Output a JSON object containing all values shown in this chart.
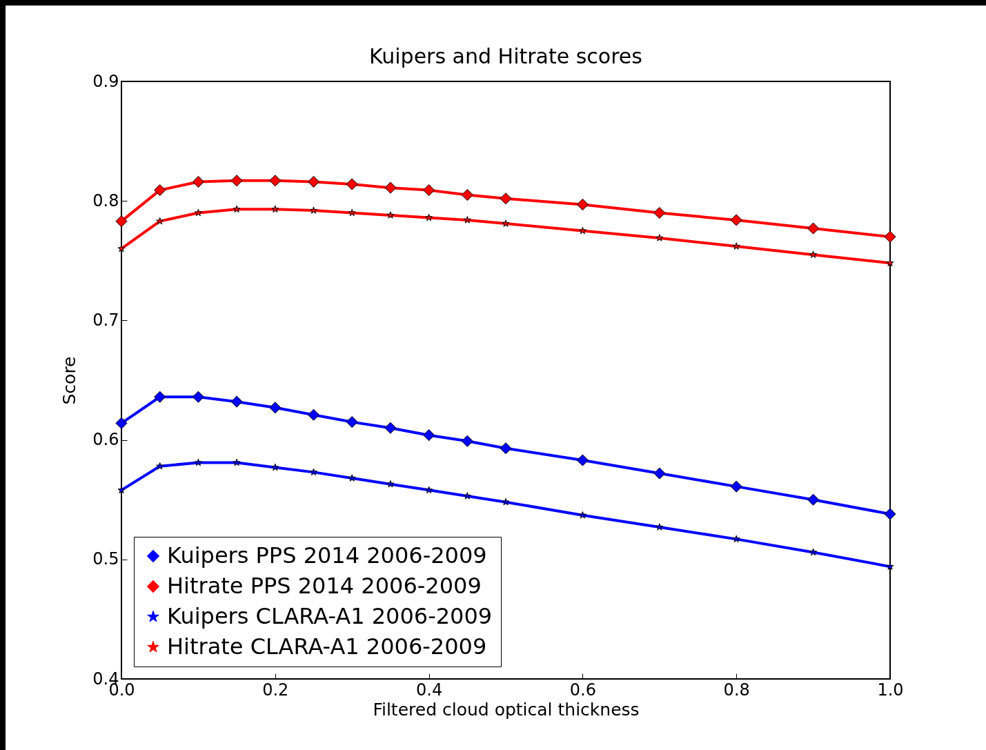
{
  "chart_data": {
    "type": "line",
    "title": "Kuipers and Hitrate scores",
    "xlabel": "Filtered cloud optical thickness",
    "ylabel": "Score",
    "x": [
      0,
      0.05,
      0.1,
      0.15,
      0.2,
      0.25,
      0.3,
      0.35,
      0.4,
      0.45,
      0.5,
      0.6,
      0.7,
      0.8,
      0.9,
      1.0
    ],
    "series": [
      {
        "name": "Kuipers PPS 2014 2006-2009",
        "color": "#0000ff",
        "marker": "diamond",
        "values": [
          0.614,
          0.636,
          0.636,
          0.632,
          0.627,
          0.621,
          0.615,
          0.61,
          0.604,
          0.599,
          0.593,
          0.583,
          0.572,
          0.561,
          0.55,
          0.538
        ]
      },
      {
        "name": "Hitrate PPS 2014 2006-2009",
        "color": "#ff0000",
        "marker": "diamond",
        "values": [
          0.783,
          0.809,
          0.816,
          0.817,
          0.817,
          0.816,
          0.814,
          0.811,
          0.809,
          0.805,
          0.802,
          0.797,
          0.79,
          0.784,
          0.777,
          0.77
        ]
      },
      {
        "name": "Kuipers CLARA-A1 2006-2009",
        "color": "#0000ff",
        "marker": "star",
        "values": [
          0.558,
          0.578,
          0.581,
          0.581,
          0.577,
          0.573,
          0.568,
          0.563,
          0.558,
          0.553,
          0.548,
          0.537,
          0.527,
          0.517,
          0.506,
          0.494
        ]
      },
      {
        "name": "Hitrate CLARA-A1 2006-2009",
        "color": "#ff0000",
        "marker": "star",
        "values": [
          0.76,
          0.783,
          0.79,
          0.793,
          0.793,
          0.792,
          0.79,
          0.788,
          0.786,
          0.784,
          0.781,
          0.775,
          0.769,
          0.762,
          0.755,
          0.748
        ]
      }
    ],
    "xlim": [
      0,
      1.0
    ],
    "xticks": [
      {
        "value": 0,
        "label": "0.0"
      },
      0.2,
      0.4,
      0.6,
      0.8,
      {
        "value": 1.0,
        "label": "1.0"
      }
    ],
    "ylim": [
      0.4,
      0.9
    ],
    "yticks": [
      0.4,
      0.5,
      0.6,
      0.7,
      0.8,
      0.9
    ],
    "grid": false,
    "legend": "bottom left",
    "line_style": "solid"
  }
}
